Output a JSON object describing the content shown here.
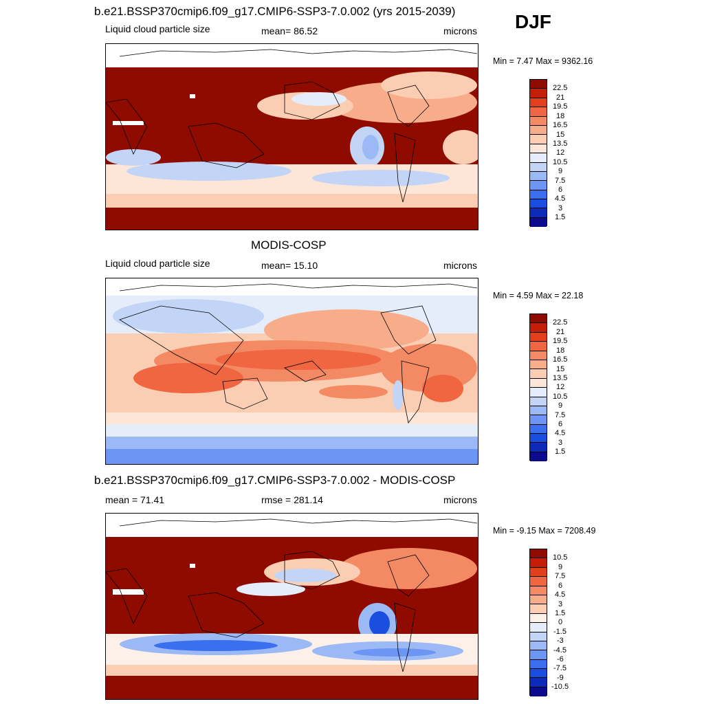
{
  "season_label": "DJF",
  "palettes": {
    "seq": [
      "#0b0b8c",
      "#0c2bb8",
      "#1a4ee0",
      "#3a6ff0",
      "#6d95f3",
      "#9bb9f5",
      "#c3d5f7",
      "#e4edf9",
      "#fde6d8",
      "#fbcdb2",
      "#f8ad8a",
      "#f48a64",
      "#ef6640",
      "#e2401d",
      "#c21e08",
      "#8f0b00"
    ],
    "div": [
      "#0b0b8c",
      "#0c2bb8",
      "#1a4ee0",
      "#3a6ff0",
      "#6d95f3",
      "#9bb9f5",
      "#c3d5f7",
      "#e4edf9",
      "#fdf0e8",
      "#fbcdb2",
      "#f8ad8a",
      "#f48a64",
      "#ef6640",
      "#e2401d",
      "#c21e08",
      "#8f0b00"
    ]
  },
  "panels": [
    {
      "title": "b.e21.BSSP370cmip6.f09_g17.CMIP6-SSP3-7.0.002 (yrs 2015-2039)",
      "left_label": "Liquid cloud particle size",
      "center_label": "mean=  86.52",
      "right_label": "microns",
      "minmax": "Min =   7.47 Max = 9362.16",
      "palette": "seq",
      "colorbar_labels": [
        "22.5",
        "21",
        "19.5",
        "18",
        "16.5",
        "15",
        "13.5",
        "12",
        "10.5",
        "9",
        "7.5",
        "6",
        "4.5",
        "3",
        "1.5"
      ]
    },
    {
      "title": "MODIS-COSP",
      "left_label": "Liquid cloud particle size",
      "center_label": "mean=  15.10",
      "right_label": "microns",
      "minmax": "Min =   4.59 Max =  22.18",
      "palette": "seq",
      "colorbar_labels": [
        "22.5",
        "21",
        "19.5",
        "18",
        "16.5",
        "15",
        "13.5",
        "12",
        "10.5",
        "9",
        "7.5",
        "6",
        "4.5",
        "3",
        "1.5"
      ]
    },
    {
      "title": "b.e21.BSSP370cmip6.f09_g17.CMIP6-SSP3-7.0.002 - MODIS-COSP",
      "left_label": "mean =  71.41",
      "center_label": "rmse = 281.14",
      "right_label": "microns",
      "minmax": "Min =  -9.15 Max = 7208.49",
      "palette": "div",
      "colorbar_labels": [
        "10.5",
        "9",
        "7.5",
        "6",
        "4.5",
        "3",
        "1.5",
        "0",
        "-1.5",
        "-3",
        "-4.5",
        "-6",
        "-7.5",
        "-9",
        "-10.5"
      ]
    }
  ]
}
